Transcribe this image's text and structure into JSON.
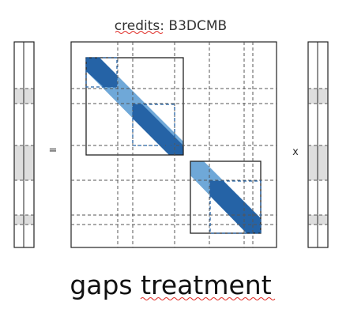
{
  "credits": {
    "label": "credits",
    "separator": ": ",
    "value": "B3DCMB"
  },
  "equals_symbol": "=",
  "times_symbol": "x",
  "caption": "gaps treatment",
  "colors": {
    "dark_blue": "#2563a6",
    "light_blue": "#6fa8d8",
    "gap_fill": "#dddddd",
    "frame": "#222222",
    "dash": "#555555",
    "spellcheck": "#e0302a"
  }
}
